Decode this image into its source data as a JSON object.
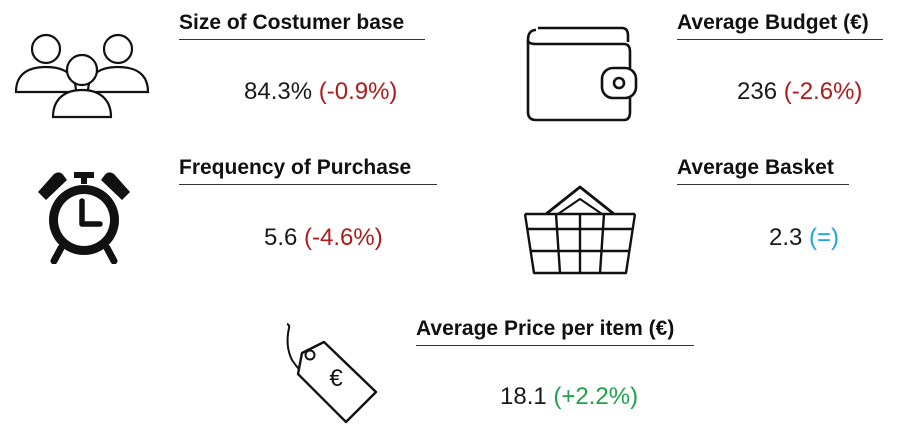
{
  "kpis": {
    "customer_base": {
      "title": "Size of Costumer base",
      "value": "84.3%",
      "change": "(-0.9%)",
      "icon": "people-group-icon"
    },
    "budget": {
      "title": "Average Budget (€)",
      "value": "236",
      "change": "(-2.6%)",
      "icon": "wallet-icon"
    },
    "frequency": {
      "title": "Frequency of Purchase",
      "value": "5.6",
      "change": "(-4.6%)",
      "icon": "alarm-clock-icon"
    },
    "basket": {
      "title": "Average Basket",
      "value": "2.3",
      "change": "(=)",
      "icon": "basket-icon"
    },
    "price": {
      "title": "Average Price per item (€)",
      "value": "18.1",
      "change": "(+2.2%)",
      "icon": "price-tag-icon",
      "tag_symbol": "€"
    }
  },
  "colors": {
    "negative": "#b01a1a",
    "neutral": "#1fa3e8",
    "positive": "#1fa34a",
    "text": "#1a1a1a"
  }
}
